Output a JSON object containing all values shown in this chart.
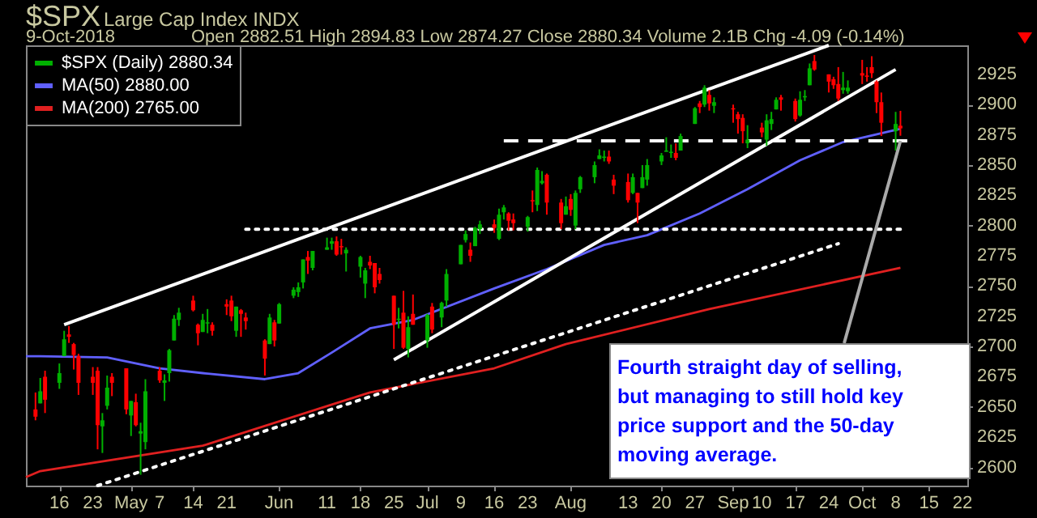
{
  "chart_data": {
    "type": "candlestick",
    "title": "$SPX",
    "subtitle": "Large Cap Index INDX",
    "annotations": [
      "9-Oct-2018",
      "Open 2882.51 High 2894.83 Low 2874.27 Close 2880.34 Volume 2.1B Chg -4.09 (-0.14%)",
      {
        "text": "Fourth straight day of selling, but managing to still hold key price support and the 50-day moving average.",
        "x": "2018-10-09",
        "y": 2870
      }
    ],
    "xlim": [
      "2018-04-09",
      "2018-10-23"
    ],
    "xticks": [
      {
        "value": "2018-04-16",
        "label": "16"
      },
      {
        "value": "2018-04-23",
        "label": "23"
      },
      {
        "value": "2018-05-01",
        "label": "May"
      },
      {
        "value": "2018-05-07",
        "label": "7"
      },
      {
        "value": "2018-05-14",
        "label": "14"
      },
      {
        "value": "2018-05-21",
        "label": "21"
      },
      {
        "value": "2018-06-01",
        "label": "Jun"
      },
      {
        "value": "2018-06-11",
        "label": "11"
      },
      {
        "value": "2018-06-18",
        "label": "18"
      },
      {
        "value": "2018-06-25",
        "label": "25"
      },
      {
        "value": "2018-07-02",
        "label": "Jul"
      },
      {
        "value": "2018-07-09",
        "label": "9"
      },
      {
        "value": "2018-07-16",
        "label": "16"
      },
      {
        "value": "2018-07-23",
        "label": "23"
      },
      {
        "value": "2018-08-01",
        "label": "Aug"
      },
      {
        "value": "2018-08-13",
        "label": "13"
      },
      {
        "value": "2018-08-20",
        "label": "20"
      },
      {
        "value": "2018-08-27",
        "label": "27"
      },
      {
        "value": "2018-09-04",
        "label": "Sep"
      },
      {
        "value": "2018-09-10",
        "label": "10"
      },
      {
        "value": "2018-09-17",
        "label": "17"
      },
      {
        "value": "2018-09-24",
        "label": "24"
      },
      {
        "value": "2018-10-01",
        "label": "Oct"
      },
      {
        "value": "2018-10-08",
        "label": "8"
      },
      {
        "value": "2018-10-15",
        "label": "15"
      },
      {
        "value": "2018-10-22",
        "label": "22"
      }
    ],
    "ylim": [
      2585,
      2949
    ],
    "yticks": [
      2600,
      2625,
      2650,
      2675,
      2700,
      2725,
      2750,
      2775,
      2800,
      2825,
      2850,
      2875,
      2900,
      2925
    ],
    "grid": false,
    "legend": "top left",
    "series": [
      {
        "name": "$SPX (Daily) 2880.34",
        "color": "#00b000",
        "x": [
          "2018-04-11",
          "2018-04-12",
          "2018-04-13",
          "2018-04-16",
          "2018-04-17",
          "2018-04-18",
          "2018-04-19",
          "2018-04-20",
          "2018-04-23",
          "2018-04-24",
          "2018-04-25",
          "2018-04-26",
          "2018-04-27",
          "2018-04-30",
          "2018-05-01",
          "2018-05-02",
          "2018-05-03",
          "2018-05-04",
          "2018-05-07",
          "2018-05-08",
          "2018-05-09",
          "2018-05-10",
          "2018-05-11",
          "2018-05-14",
          "2018-05-15",
          "2018-05-16",
          "2018-05-17",
          "2018-05-18",
          "2018-05-21",
          "2018-05-22",
          "2018-05-23",
          "2018-05-24",
          "2018-05-25",
          "2018-05-29",
          "2018-05-30",
          "2018-05-31",
          "2018-06-01",
          "2018-06-04",
          "2018-06-05",
          "2018-06-06",
          "2018-06-07",
          "2018-06-08",
          "2018-06-11",
          "2018-06-12",
          "2018-06-13",
          "2018-06-14",
          "2018-06-15",
          "2018-06-18",
          "2018-06-19",
          "2018-06-20",
          "2018-06-21",
          "2018-06-22",
          "2018-06-25",
          "2018-06-26",
          "2018-06-27",
          "2018-06-28",
          "2018-06-29",
          "2018-07-02",
          "2018-07-03",
          "2018-07-05",
          "2018-07-06",
          "2018-07-09",
          "2018-07-10",
          "2018-07-11",
          "2018-07-12",
          "2018-07-13",
          "2018-07-16",
          "2018-07-17",
          "2018-07-18",
          "2018-07-19",
          "2018-07-20",
          "2018-07-23",
          "2018-07-24",
          "2018-07-25",
          "2018-07-26",
          "2018-07-27",
          "2018-07-30",
          "2018-07-31",
          "2018-08-01",
          "2018-08-02",
          "2018-08-03",
          "2018-08-06",
          "2018-08-07",
          "2018-08-08",
          "2018-08-09",
          "2018-08-10",
          "2018-08-13",
          "2018-08-14",
          "2018-08-15",
          "2018-08-16",
          "2018-08-17",
          "2018-08-20",
          "2018-08-21",
          "2018-08-22",
          "2018-08-23",
          "2018-08-24",
          "2018-08-27",
          "2018-08-28",
          "2018-08-29",
          "2018-08-30",
          "2018-08-31",
          "2018-09-04",
          "2018-09-05",
          "2018-09-06",
          "2018-09-07",
          "2018-09-10",
          "2018-09-11",
          "2018-09-12",
          "2018-09-13",
          "2018-09-14",
          "2018-09-17",
          "2018-09-18",
          "2018-09-19",
          "2018-09-20",
          "2018-09-21",
          "2018-09-24",
          "2018-09-25",
          "2018-09-26",
          "2018-09-27",
          "2018-09-28",
          "2018-10-01",
          "2018-10-02",
          "2018-10-03",
          "2018-10-04",
          "2018-10-05",
          "2018-10-08",
          "2018-10-09"
        ],
        "ohlc": [
          [
            2648,
            2662,
            2639,
            2642
          ],
          [
            2653,
            2674,
            2653,
            2663
          ],
          [
            2675,
            2680,
            2645,
            2656
          ],
          [
            2670,
            2686,
            2665,
            2678
          ],
          [
            2692,
            2713,
            2692,
            2706
          ],
          [
            2710,
            2717,
            2703,
            2708
          ],
          [
            2702,
            2703,
            2681,
            2693
          ],
          [
            2692,
            2694,
            2660,
            2670
          ],
          [
            2675,
            2683,
            2660,
            2670
          ],
          [
            2680,
            2683,
            2615,
            2635
          ],
          [
            2634,
            2645,
            2612,
            2639
          ],
          [
            2651,
            2676,
            2648,
            2666
          ],
          [
            2675,
            2678,
            2659,
            2670
          ],
          [
            2682,
            2682,
            2644,
            2648
          ],
          [
            2643,
            2655,
            2626,
            2655
          ],
          [
            2654,
            2661,
            2634,
            2635
          ],
          [
            2628,
            2637,
            2594,
            2630
          ],
          [
            2621,
            2673,
            2615,
            2663
          ],
          [
            2680,
            2683,
            2670,
            2672
          ],
          [
            2670,
            2677,
            2655,
            2672
          ],
          [
            2678,
            2698,
            2671,
            2697
          ],
          [
            2705,
            2726,
            2705,
            2723
          ],
          [
            2722,
            2732,
            2717,
            2728
          ],
          [
            2738,
            2742,
            2729,
            2730
          ],
          [
            2718,
            2719,
            2701,
            2711
          ],
          [
            2712,
            2727,
            2712,
            2722
          ],
          [
            2719,
            2731,
            2711,
            2720
          ],
          [
            2718,
            2720,
            2709,
            2713
          ],
          [
            2735,
            2739,
            2726,
            2733
          ],
          [
            2738,
            2742,
            2721,
            2725
          ],
          [
            2713,
            2733,
            2708,
            2733
          ],
          [
            2730,
            2731,
            2708,
            2727
          ],
          [
            2724,
            2728,
            2714,
            2721
          ],
          [
            2705,
            2706,
            2676,
            2690
          ],
          [
            2702,
            2727,
            2702,
            2724
          ],
          [
            2720,
            2722,
            2700,
            2705
          ],
          [
            2719,
            2736,
            2719,
            2735
          ],
          [
            2742,
            2749,
            2740,
            2747
          ],
          [
            2745,
            2753,
            2741,
            2749
          ],
          [
            2753,
            2772,
            2748,
            2772
          ],
          [
            2774,
            2779,
            2760,
            2771
          ],
          [
            2765,
            2779,
            2763,
            2779
          ],
          [
            2780,
            2790,
            2780,
            2782
          ],
          [
            2785,
            2790,
            2780,
            2787
          ],
          [
            2787,
            2791,
            2775,
            2776
          ],
          [
            2783,
            2789,
            2776,
            2782
          ],
          [
            2777,
            2782,
            2762,
            2780
          ],
          [
            2766,
            2775,
            2757,
            2774
          ],
          [
            2752,
            2765,
            2740,
            2763
          ],
          [
            2770,
            2775,
            2764,
            2767
          ],
          [
            2769,
            2769,
            2744,
            2749
          ],
          [
            2760,
            2765,
            2752,
            2755
          ],
          [
            2742,
            2742,
            2698,
            2718
          ],
          [
            2722,
            2732,
            2715,
            2723
          ],
          [
            2728,
            2746,
            2698,
            2699
          ],
          [
            2698,
            2725,
            2691,
            2716
          ],
          [
            2727,
            2743,
            2718,
            2718
          ],
          [
            2705,
            2727,
            2699,
            2726
          ],
          [
            2733,
            2736,
            2711,
            2714
          ],
          [
            2724,
            2737,
            2716,
            2736
          ],
          [
            2738,
            2764,
            2733,
            2760
          ],
          [
            2768,
            2784,
            2768,
            2784
          ],
          [
            2788,
            2796,
            2786,
            2793
          ],
          [
            2780,
            2786,
            2770,
            2775
          ],
          [
            2783,
            2799,
            2783,
            2798
          ],
          [
            2797,
            2804,
            2793,
            2801
          ],
          [
            2801,
            2805,
            2794,
            2798
          ],
          [
            2789,
            2814,
            2788,
            2809
          ],
          [
            2811,
            2817,
            2805,
            2815
          ],
          [
            2810,
            2811,
            2796,
            2804
          ],
          [
            2805,
            2810,
            2796,
            2802
          ],
          [
            2799,
            2808,
            2795,
            2807
          ],
          [
            2821,
            2829,
            2811,
            2820
          ],
          [
            2817,
            2848,
            2812,
            2846
          ],
          [
            2835,
            2845,
            2834,
            2837
          ],
          [
            2842,
            2843,
            2809,
            2819
          ],
          [
            2819,
            2822,
            2797,
            2802
          ],
          [
            2809,
            2824,
            2809,
            2816
          ],
          [
            2822,
            2826,
            2808,
            2813
          ],
          [
            2800,
            2829,
            2797,
            2827
          ],
          [
            2830,
            2841,
            2827,
            2840
          ],
          [
            2840,
            2853,
            2835,
            2850
          ],
          [
            2855,
            2863,
            2855,
            2858
          ],
          [
            2856,
            2862,
            2853,
            2857
          ],
          [
            2857,
            2862,
            2851,
            2853
          ],
          [
            2838,
            2842,
            2826,
            2833
          ],
          [
            2836,
            2843,
            2819,
            2821
          ],
          [
            2827,
            2843,
            2826,
            2840
          ],
          [
            2827,
            2827,
            2802,
            2819
          ],
          [
            2831,
            2850,
            2831,
            2840
          ],
          [
            2838,
            2855,
            2833,
            2850
          ],
          [
            2853,
            2860,
            2850,
            2858
          ],
          [
            2861,
            2873,
            2861,
            2862
          ],
          [
            2860,
            2867,
            2856,
            2861
          ],
          [
            2860,
            2868,
            2854,
            2856
          ],
          [
            2862,
            2876,
            2862,
            2874
          ],
          [
            2884,
            2898,
            2884,
            2897
          ],
          [
            2901,
            2903,
            2893,
            2898
          ],
          [
            2900,
            2916,
            2898,
            2914
          ],
          [
            2908,
            2912,
            2895,
            2901
          ],
          [
            2899,
            2906,
            2893,
            2902
          ],
          [
            2897,
            2900,
            2885,
            2896
          ],
          [
            2892,
            2894,
            2876,
            2888
          ],
          [
            2889,
            2892,
            2868,
            2878
          ],
          [
            2868,
            2883,
            2864,
            2871
          ],
          [
            2881,
            2885,
            2873,
            2877
          ],
          [
            2871,
            2892,
            2866,
            2887
          ],
          [
            2884,
            2894,
            2879,
            2888
          ],
          [
            2896,
            2906,
            2896,
            2904
          ],
          [
            2906,
            2908,
            2895,
            2904
          ],
          [
            2903,
            2905,
            2886,
            2888
          ],
          [
            2891,
            2911,
            2890,
            2904
          ],
          [
            2906,
            2912,
            2903,
            2907
          ],
          [
            2916,
            2934,
            2916,
            2930
          ],
          [
            2936,
            2941,
            2928,
            2929
          ],
          [
            2925,
            2925,
            2910,
            2919
          ],
          [
            2921,
            2923,
            2913,
            2916
          ],
          [
            2917,
            2931,
            2903,
            2905
          ],
          [
            2912,
            2927,
            2909,
            2914
          ],
          [
            2911,
            2920,
            2909,
            2914
          ],
          [
            2926,
            2937,
            2917,
            2924
          ],
          [
            2924,
            2931,
            2919,
            2923
          ],
          [
            2931,
            2940,
            2922,
            2926
          ],
          [
            2919,
            2920,
            2893,
            2902
          ],
          [
            2902,
            2910,
            2874,
            2885
          ],
          [
            2878,
            2894,
            2862,
            2884
          ],
          [
            2882.51,
            2894.83,
            2874.27,
            2880.34
          ]
        ],
        "colors": [
          "#ff0000",
          "#00b000",
          "#ff0000",
          "#00b000",
          "#00b000",
          "#ff0000",
          "#ff0000",
          "#ff0000",
          "#ff0000",
          "#ff0000",
          "#00b000",
          "#00b000",
          "#ff0000",
          "#ff0000",
          "#00b000",
          "#ff0000",
          "#00b000",
          "#00b000",
          "#ff0000",
          "#00b000",
          "#00b000",
          "#00b000",
          "#00b000",
          "#ff0000",
          "#ff0000",
          "#00b000",
          "#00b000",
          "#ff0000",
          "#ff0000",
          "#ff0000",
          "#00b000",
          "#ff0000",
          "#ff0000",
          "#ff0000",
          "#00b000",
          "#ff0000",
          "#00b000",
          "#00b000",
          "#00b000",
          "#00b000",
          "#ff0000",
          "#00b000",
          "#00b000",
          "#00b000",
          "#ff0000",
          "#ff0000",
          "#00b000",
          "#00b000",
          "#00b000",
          "#ff0000",
          "#ff0000",
          "#ff0000",
          "#ff0000",
          "#00b000",
          "#ff0000",
          "#00b000",
          "#ff0000",
          "#00b000",
          "#ff0000",
          "#00b000",
          "#00b000",
          "#00b000",
          "#00b000",
          "#ff0000",
          "#00b000",
          "#00b000",
          "#ff0000",
          "#00b000",
          "#00b000",
          "#ff0000",
          "#ff0000",
          "#00b000",
          "#ff0000",
          "#00b000",
          "#00b000",
          "#ff0000",
          "#ff0000",
          "#00b000",
          "#ff0000",
          "#00b000",
          "#00b000",
          "#00b000",
          "#00b000",
          "#00b000",
          "#ff0000",
          "#ff0000",
          "#ff0000",
          "#00b000",
          "#ff0000",
          "#00b000",
          "#00b000",
          "#00b000",
          "#00b000",
          "#00b000",
          "#ff0000",
          "#00b000",
          "#00b000",
          "#ff0000",
          "#00b000",
          "#ff0000",
          "#00b000",
          "#ff0000",
          "#ff0000",
          "#ff0000",
          "#00b000",
          "#ff0000",
          "#00b000",
          "#00b000",
          "#00b000",
          "#ff0000",
          "#ff0000",
          "#00b000",
          "#00b000",
          "#00b000",
          "#ff0000",
          "#ff0000",
          "#ff0000",
          "#ff0000",
          "#00b000",
          "#00b000",
          "#ff0000",
          "#ff0000",
          "#ff0000",
          "#ff0000",
          "#ff0000",
          "#00b000",
          "#ff0000"
        ]
      },
      {
        "name": "MA(50) 2880.00",
        "type": "line",
        "color": "#6060ff",
        "x": [
          "2018-04-09",
          "2018-04-12",
          "2018-04-26",
          "2018-05-07",
          "2018-05-16",
          "2018-05-29",
          "2018-06-05",
          "2018-06-12",
          "2018-06-20",
          "2018-06-29",
          "2018-07-16",
          "2018-07-27",
          "2018-08-08",
          "2018-08-17",
          "2018-08-28",
          "2018-09-07",
          "2018-09-18",
          "2018-09-27",
          "2018-10-09"
        ],
        "values": [
          2692,
          2692,
          2691,
          2682,
          2678,
          2673,
          2678,
          2695,
          2715,
          2722,
          2748,
          2764,
          2784,
          2792,
          2810,
          2830,
          2854,
          2869,
          2880
        ]
      },
      {
        "name": "MA(200) 2765.00",
        "type": "line",
        "color": "#e02020",
        "x": [
          "2018-04-09",
          "2018-04-12",
          "2018-05-16",
          "2018-06-12",
          "2018-06-20",
          "2018-07-16",
          "2018-07-31",
          "2018-08-30",
          "2018-10-09"
        ],
        "values": [
          2592,
          2597,
          2618,
          2652,
          2662,
          2682,
          2702,
          2731,
          2765
        ]
      },
      {
        "type": "line",
        "color": "#ffffff",
        "x": [
          "2018-04-17",
          "2018-09-24"
        ],
        "values": [
          2718,
          2949
        ]
      },
      {
        "type": "line",
        "color": "#ffffff",
        "x": [
          "2018-06-25",
          "2018-10-08"
        ],
        "values": [
          2689,
          2929
        ]
      },
      {
        "type": "line",
        "color": "#ffffff",
        "line_style": "dotted",
        "x": [
          "2018-04-24",
          "2018-09-26"
        ],
        "values": [
          2585,
          2785
        ]
      },
      {
        "type": "line",
        "color": "#ffffff",
        "line_style": "dashed",
        "x": [
          "2018-07-18",
          "2018-10-11"
        ],
        "values": [
          2870,
          2870
        ]
      },
      {
        "type": "line",
        "color": "#ffffff",
        "line_style": "dotted",
        "x": [
          "2018-05-25",
          "2018-10-10"
        ],
        "values": [
          2797,
          2797
        ]
      }
    ]
  }
}
